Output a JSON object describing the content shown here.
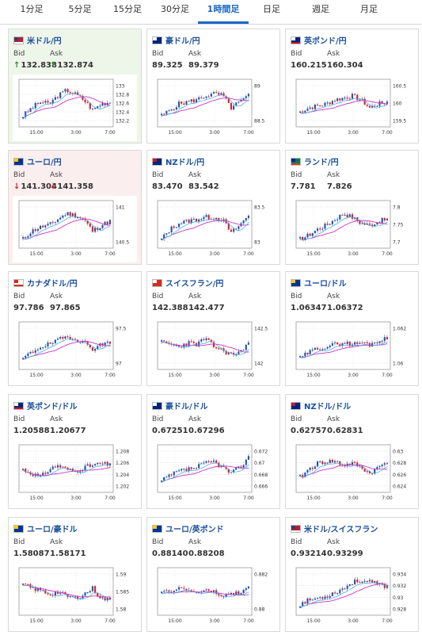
{
  "tabs": [
    {
      "label": "1分足",
      "active": false
    },
    {
      "label": "5分足",
      "active": false
    },
    {
      "label": "15分足",
      "active": false
    },
    {
      "label": "30分足",
      "active": false
    },
    {
      "label": "1時間足",
      "active": true
    },
    {
      "label": "日足",
      "active": false
    },
    {
      "label": "週足",
      "active": false
    },
    {
      "label": "月足",
      "active": false
    }
  ],
  "bid_label": "Bid",
  "ask_label": "Ask",
  "x_labels": [
    "15:00",
    "3:00",
    "7:00"
  ],
  "colors": {
    "up": "#2255aa",
    "down": "#d8202a",
    "ma": "#cc33cc",
    "fast": "#33aadd"
  },
  "pairs": [
    {
      "name": "米ドル/円",
      "flag": "us-jp",
      "bid": "132.838",
      "ask": "132.874",
      "trend": "up",
      "y_ticks": [
        "133",
        "132.8",
        "132.6",
        "132.4",
        "132.2"
      ],
      "seed": 3,
      "shape": [
        0.2,
        0.4,
        0.55,
        0.5,
        0.7,
        0.85,
        0.75,
        0.6,
        0.35,
        0.5,
        0.55
      ]
    },
    {
      "name": "豪ドル/円",
      "flag": "au-jp",
      "bid": "89.325",
      "ask": "89.379",
      "trend": "",
      "y_ticks": [
        "89",
        "88.5"
      ],
      "seed": 5,
      "shape": [
        0.2,
        0.35,
        0.5,
        0.55,
        0.6,
        0.7,
        0.75,
        0.72,
        0.4,
        0.55,
        0.7
      ]
    },
    {
      "name": "英ポンド/円",
      "flag": "gb-jp",
      "bid": "160.215",
      "ask": "160.304",
      "trend": "",
      "y_ticks": [
        "160.5",
        "160",
        "159.5"
      ],
      "seed": 7,
      "shape": [
        0.3,
        0.4,
        0.45,
        0.5,
        0.6,
        0.65,
        0.7,
        0.6,
        0.4,
        0.5,
        0.55
      ]
    },
    {
      "name": "ユーロ/円",
      "flag": "eu-jp",
      "bid": "141.304",
      "ask": "141.358",
      "trend": "down",
      "y_ticks": [
        "141",
        "140.5"
      ],
      "seed": 11,
      "shape": [
        0.15,
        0.35,
        0.45,
        0.5,
        0.65,
        0.8,
        0.75,
        0.65,
        0.35,
        0.5,
        0.6
      ]
    },
    {
      "name": "NZドル/円",
      "flag": "nz-jp",
      "bid": "83.470",
      "ask": "83.542",
      "trend": "",
      "y_ticks": [
        "83.5",
        "83"
      ],
      "seed": 13,
      "shape": [
        0.15,
        0.4,
        0.55,
        0.6,
        0.65,
        0.7,
        0.7,
        0.65,
        0.3,
        0.5,
        0.75
      ]
    },
    {
      "name": "ランド/円",
      "flag": "za-jp",
      "bid": "7.781",
      "ask": "7.826",
      "trend": "",
      "y_ticks": [
        "7.8",
        "7.75",
        "7.7"
      ],
      "seed": 17,
      "shape": [
        0.15,
        0.25,
        0.4,
        0.5,
        0.65,
        0.8,
        0.7,
        0.55,
        0.5,
        0.6,
        0.65
      ]
    },
    {
      "name": "カナダドル/円",
      "flag": "ca-jp",
      "bid": "97.786",
      "ask": "97.865",
      "trend": "",
      "y_ticks": [
        "97.5",
        "97"
      ],
      "seed": 19,
      "shape": [
        0.2,
        0.35,
        0.5,
        0.55,
        0.65,
        0.75,
        0.7,
        0.6,
        0.45,
        0.55,
        0.6
      ]
    },
    {
      "name": "スイスフラン/円",
      "flag": "ch-jp",
      "bid": "142.388",
      "ask": "142.477",
      "trend": "",
      "y_ticks": [
        "142.5",
        "142"
      ],
      "seed": 23,
      "shape": [
        0.6,
        0.55,
        0.5,
        0.6,
        0.55,
        0.7,
        0.5,
        0.4,
        0.3,
        0.35,
        0.6
      ]
    },
    {
      "name": "ユーロ/ドル",
      "flag": "eu-us",
      "bid": "1.06347",
      "ask": "1.06372",
      "trend": "",
      "y_ticks": [
        "1.062",
        "1.06"
      ],
      "seed": 29,
      "shape": [
        0.2,
        0.35,
        0.45,
        0.5,
        0.55,
        0.6,
        0.55,
        0.6,
        0.55,
        0.65,
        0.7
      ]
    },
    {
      "name": "英ポンド/ドル",
      "flag": "gb-us",
      "bid": "1.20588",
      "ask": "1.20677",
      "trend": "",
      "y_ticks": [
        "1.208",
        "1.206",
        "1.204",
        "1.202"
      ],
      "seed": 31,
      "shape": [
        0.5,
        0.4,
        0.3,
        0.5,
        0.6,
        0.5,
        0.45,
        0.55,
        0.6,
        0.65,
        0.6
      ]
    },
    {
      "name": "豪ドル/ドル",
      "flag": "au-us",
      "bid": "0.67251",
      "ask": "0.67296",
      "trend": "",
      "y_ticks": [
        "0.672",
        "0.67",
        "0.668",
        "0.666"
      ],
      "seed": 37,
      "shape": [
        0.2,
        0.35,
        0.45,
        0.5,
        0.55,
        0.65,
        0.7,
        0.55,
        0.4,
        0.55,
        0.8
      ]
    },
    {
      "name": "NZドル/ドル",
      "flag": "nz-us",
      "bid": "0.62757",
      "ask": "0.62831",
      "trend": "",
      "y_ticks": [
        "0.63",
        "0.628",
        "0.626",
        "0.624"
      ],
      "seed": 41,
      "shape": [
        0.3,
        0.5,
        0.65,
        0.7,
        0.7,
        0.6,
        0.65,
        0.55,
        0.4,
        0.55,
        0.7
      ]
    },
    {
      "name": "ユーロ/豪ドル",
      "flag": "eu-au",
      "bid": "1.58087",
      "ask": "1.58171",
      "trend": "",
      "y_ticks": [
        "1.59",
        "1.585",
        "1.58"
      ],
      "seed": 43,
      "shape": [
        0.7,
        0.6,
        0.55,
        0.45,
        0.5,
        0.4,
        0.35,
        0.45,
        0.6,
        0.35,
        0.3
      ]
    },
    {
      "name": "ユーロ/英ポンド",
      "flag": "eu-gb",
      "bid": "0.88140",
      "ask": "0.88208",
      "trend": "",
      "y_ticks": [
        "0.882",
        "0.88"
      ],
      "seed": 47,
      "shape": [
        0.45,
        0.55,
        0.6,
        0.55,
        0.5,
        0.55,
        0.5,
        0.4,
        0.45,
        0.5,
        0.6
      ]
    },
    {
      "name": "米ドル/スイスフラン",
      "flag": "us-ch",
      "bid": "0.93214",
      "ask": "0.93299",
      "trend": "",
      "y_ticks": [
        "0.934",
        "0.932",
        "0.93",
        "0.928"
      ],
      "seed": 53,
      "shape": [
        0.2,
        0.3,
        0.35,
        0.4,
        0.5,
        0.6,
        0.75,
        0.8,
        0.75,
        0.7,
        0.65
      ]
    }
  ]
}
